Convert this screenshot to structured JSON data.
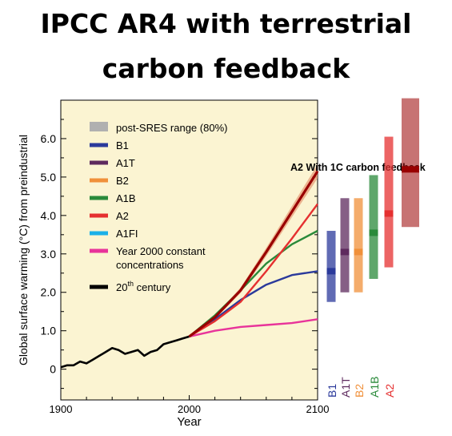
{
  "title": {
    "line1": "IPCC AR4  with terrestrial",
    "line2": "carbon feedback"
  },
  "chart_data": {
    "type": "line",
    "ylabel": "Global surface warming (°C)  from preindustrial",
    "xlabel": "Year",
    "xlim": [
      1900,
      2100
    ],
    "ylim": [
      -0.8,
      7.0
    ],
    "yticks": [
      0,
      1.0,
      2.0,
      3.0,
      4.0,
      5.0,
      6.0
    ],
    "ytick_labels": [
      "0",
      "1.0",
      "2.0",
      "3.0",
      "4.0",
      "5.0",
      "6.0"
    ],
    "xticks": [
      1900,
      2000,
      2100
    ],
    "annotation": "A2 With 1C carbon feedback",
    "colors": {
      "B1": "#2b3a9b",
      "A1T": "#5e2a5e",
      "B2": "#f0903a",
      "A1B": "#2a8a3a",
      "A2": "#e53030",
      "A1FI": "#1ab0e8",
      "Year 2000 constant concentrations": "#e8339a",
      "20th century": "#000000",
      "feedback": "#990000",
      "range": "#b0b0b0",
      "plot_bg": "#fbf4d2"
    },
    "legend": [
      {
        "label": "post-SRES range (80%)",
        "key": "range",
        "style": "band"
      },
      {
        "label": "B1",
        "key": "B1",
        "style": "line"
      },
      {
        "label": "A1T",
        "key": "A1T",
        "style": "line"
      },
      {
        "label": "B2",
        "key": "B2",
        "style": "line"
      },
      {
        "label": "A1B",
        "key": "A1B",
        "style": "line"
      },
      {
        "label": "A2",
        "key": "A2",
        "style": "line"
      },
      {
        "label": "A1FI",
        "key": "A1FI",
        "style": "line"
      },
      {
        "label": "Year 2000 constant",
        "label2": "concentrations",
        "key": "Year 2000 constant concentrations",
        "style": "line"
      },
      {
        "label": "20",
        "sup": "th",
        "label3": " century",
        "key": "20th century",
        "style": "line"
      }
    ],
    "series": [
      {
        "name": "20th century",
        "x": [
          1900,
          1905,
          1910,
          1915,
          1920,
          1925,
          1930,
          1935,
          1940,
          1945,
          1950,
          1955,
          1960,
          1965,
          1970,
          1975,
          1980,
          1985,
          1990,
          1995,
          2000
        ],
        "y": [
          0.05,
          0.1,
          0.1,
          0.2,
          0.15,
          0.25,
          0.35,
          0.45,
          0.55,
          0.5,
          0.4,
          0.45,
          0.5,
          0.35,
          0.45,
          0.5,
          0.65,
          0.7,
          0.75,
          0.8,
          0.85
        ]
      },
      {
        "name": "Year 2000 constant concentrations",
        "x": [
          2000,
          2020,
          2040,
          2060,
          2080,
          2100
        ],
        "y": [
          0.85,
          1.0,
          1.1,
          1.15,
          1.2,
          1.3
        ]
      },
      {
        "name": "B1",
        "x": [
          2000,
          2020,
          2040,
          2060,
          2080,
          2100
        ],
        "y": [
          0.85,
          1.3,
          1.8,
          2.2,
          2.45,
          2.55
        ]
      },
      {
        "name": "A1B",
        "x": [
          2000,
          2020,
          2040,
          2060,
          2080,
          2100
        ],
        "y": [
          0.85,
          1.4,
          2.05,
          2.75,
          3.25,
          3.6
        ]
      },
      {
        "name": "A2",
        "x": [
          2000,
          2020,
          2040,
          2060,
          2080,
          2100
        ],
        "y": [
          0.85,
          1.25,
          1.75,
          2.55,
          3.4,
          4.3
        ]
      },
      {
        "name": "A2 With 1C carbon feedback",
        "x": [
          2000,
          2020,
          2040,
          2060,
          2080,
          2100
        ],
        "y": [
          0.85,
          1.35,
          2.05,
          3.05,
          4.1,
          5.15
        ]
      }
    ],
    "bars": {
      "labels": [
        "B1",
        "A1T",
        "B2",
        "A1B",
        "A2",
        ""
      ],
      "ranges": [
        {
          "name": "B1",
          "low": 1.75,
          "high": 3.6,
          "best": 2.55
        },
        {
          "name": "A1T",
          "low": 2.0,
          "high": 4.45,
          "best": 3.05
        },
        {
          "name": "B2",
          "low": 2.0,
          "high": 4.45,
          "best": 3.05
        },
        {
          "name": "A1B",
          "low": 2.35,
          "high": 5.05,
          "best": 3.55
        },
        {
          "name": "A2",
          "low": 2.65,
          "high": 6.05,
          "best": 4.05
        },
        {
          "name": "A2 With 1C carbon feedback",
          "low": 3.7,
          "high": 7.05,
          "best": 5.2
        }
      ]
    }
  }
}
